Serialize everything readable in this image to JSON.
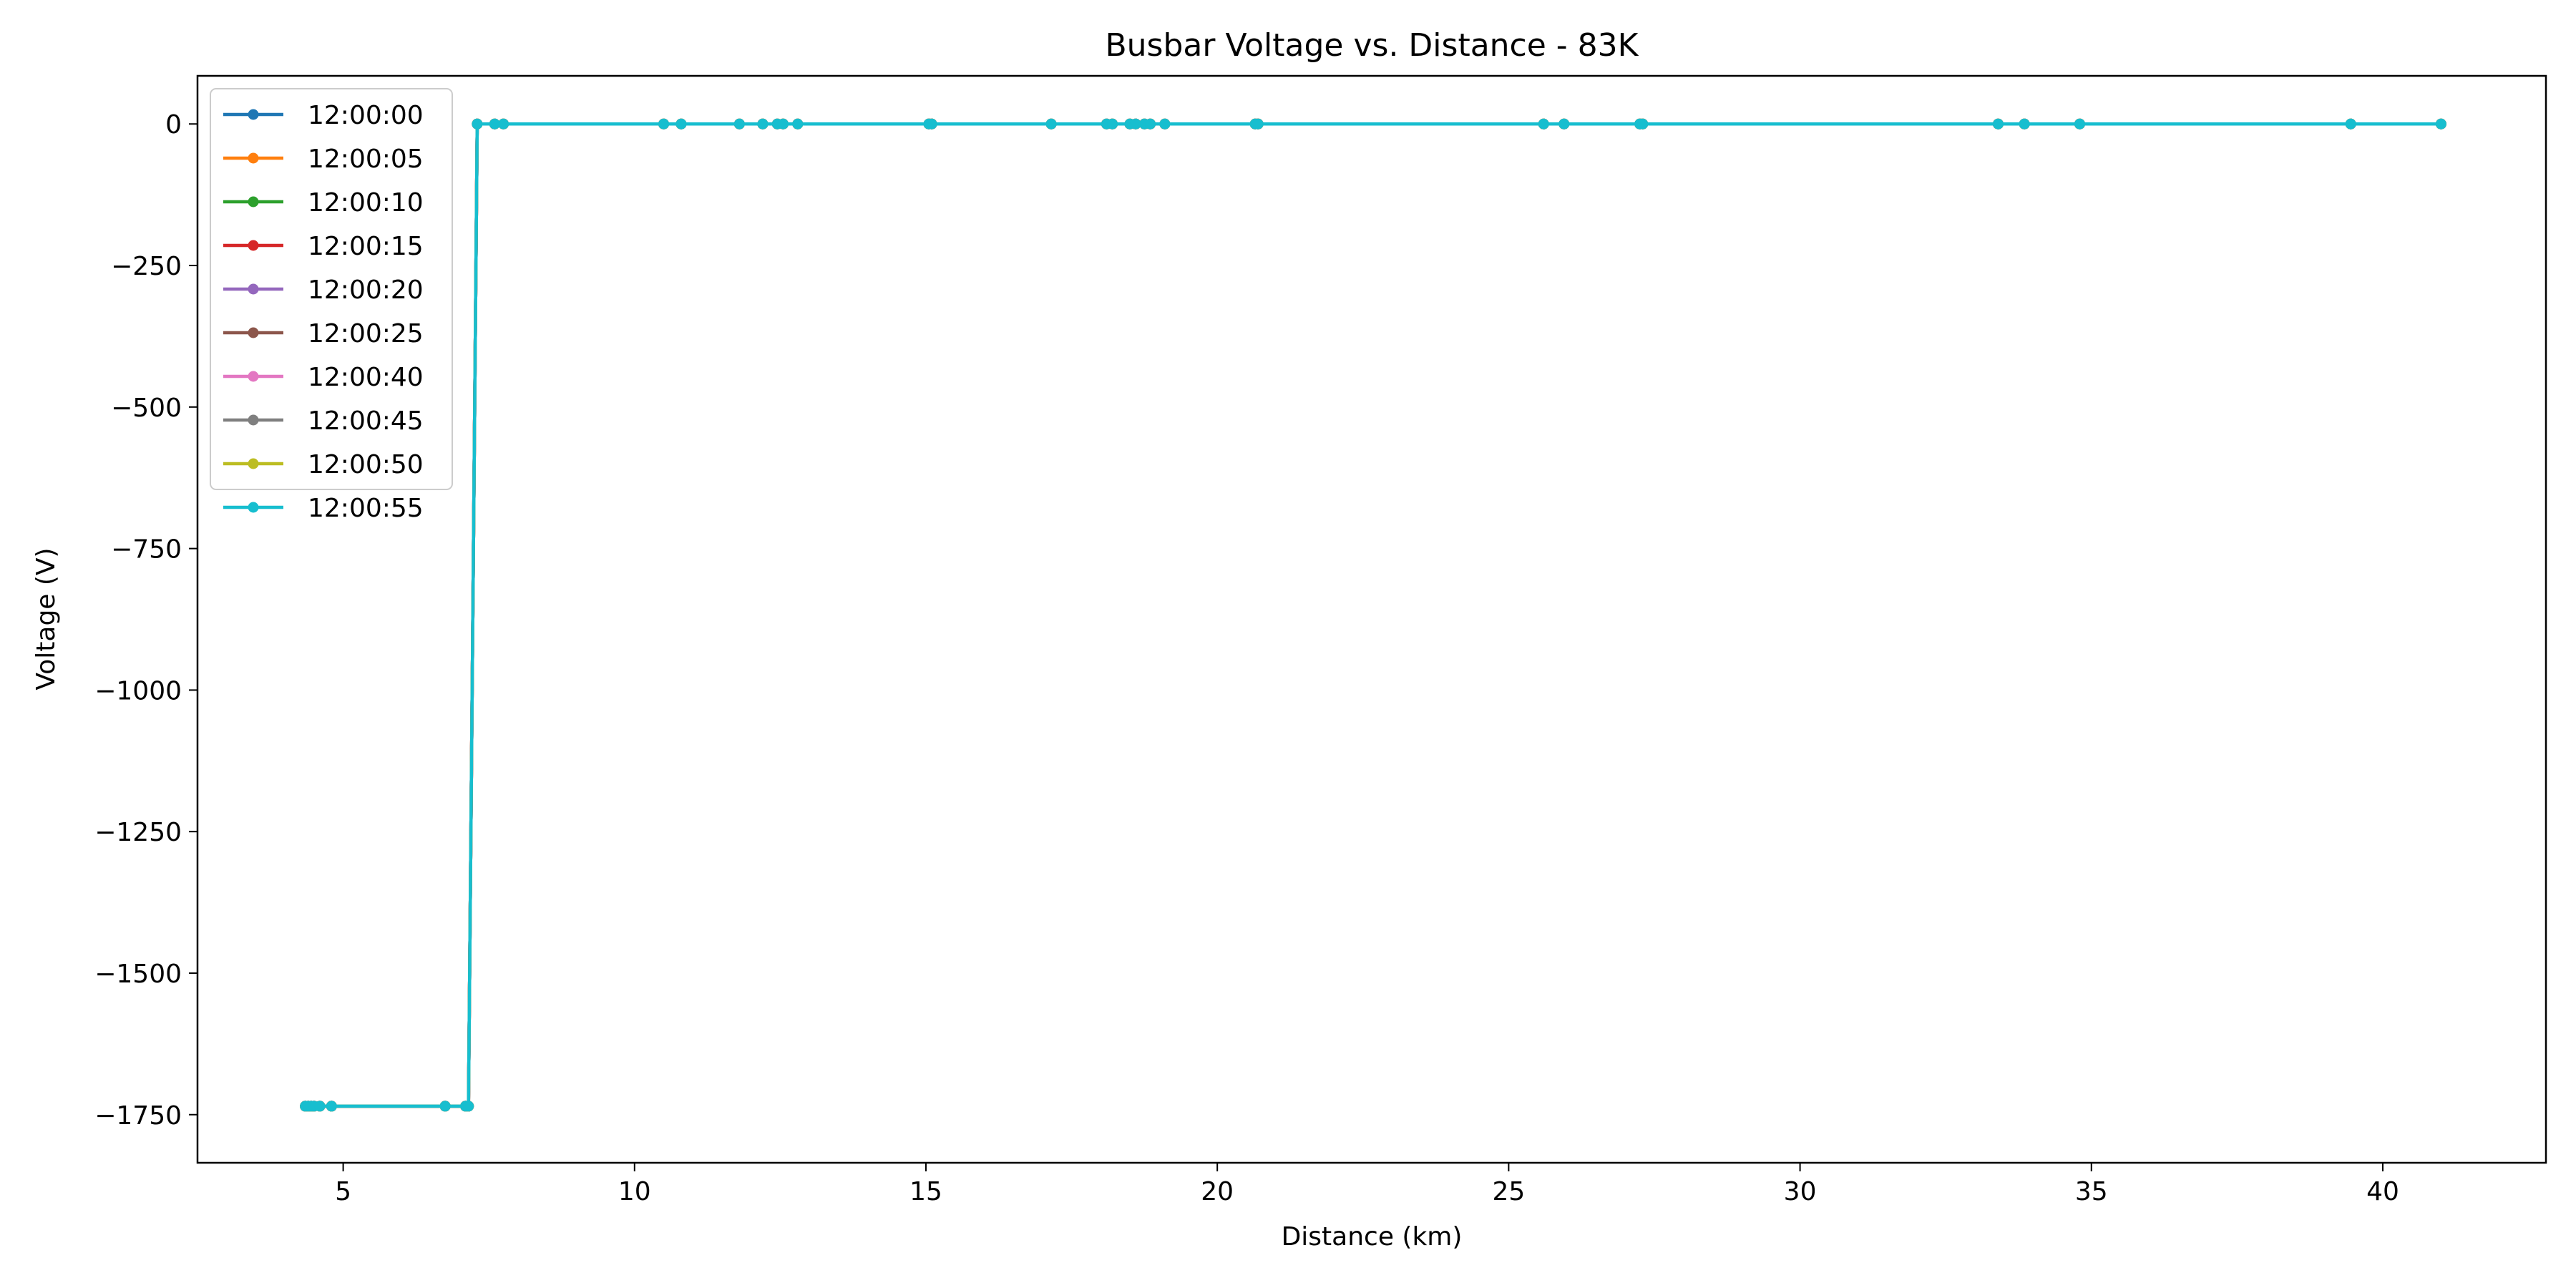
{
  "chart_data": {
    "type": "line",
    "title": "Busbar Voltage vs. Distance - 83K",
    "xlabel": "Distance (km)",
    "ylabel": "Voltage (V)",
    "xlim": [
      2.5,
      42.8
    ],
    "ylim": [
      -1835,
      85
    ],
    "xticks": [
      5,
      10,
      15,
      20,
      25,
      30,
      35,
      40
    ],
    "yticks": [
      0,
      -250,
      -500,
      -750,
      -1000,
      -1250,
      -1500,
      -1750
    ],
    "ytick_labels": [
      "0",
      "−250",
      "−500",
      "−750",
      "−1000",
      "−1250",
      "−1500",
      "−1750"
    ],
    "grid": false,
    "legend_position": "top-left",
    "x": [
      4.35,
      4.4,
      4.45,
      4.5,
      4.6,
      4.8,
      6.75,
      7.1,
      7.15,
      7.3,
      7.6,
      7.75,
      10.5,
      10.8,
      11.8,
      12.2,
      12.45,
      12.55,
      12.8,
      15.05,
      15.1,
      17.15,
      18.1,
      18.2,
      18.5,
      18.6,
      18.75,
      18.85,
      19.1,
      20.65,
      20.7,
      25.6,
      25.95,
      27.25,
      27.3,
      33.4,
      33.85,
      34.8,
      39.45,
      41.0
    ],
    "series": [
      {
        "name": "12:00:00",
        "color": "#1f77b4",
        "values": [
          -1735,
          -1735,
          -1735,
          -1735,
          -1735,
          -1735,
          -1735,
          -1735,
          -1735,
          0,
          0,
          0,
          0,
          0,
          0,
          0,
          0,
          0,
          0,
          0,
          0,
          0,
          0,
          0,
          0,
          0,
          0,
          0,
          0,
          0,
          0,
          0,
          0,
          0,
          0,
          0,
          0,
          0,
          0,
          0
        ]
      },
      {
        "name": "12:00:05",
        "color": "#ff7f0e",
        "values": [
          -1735,
          -1735,
          -1735,
          -1735,
          -1735,
          -1735,
          -1735,
          -1735,
          -1735,
          0,
          0,
          0,
          0,
          0,
          0,
          0,
          0,
          0,
          0,
          0,
          0,
          0,
          0,
          0,
          0,
          0,
          0,
          0,
          0,
          0,
          0,
          0,
          0,
          0,
          0,
          0,
          0,
          0,
          0,
          0
        ]
      },
      {
        "name": "12:00:10",
        "color": "#2ca02c",
        "values": [
          -1735,
          -1735,
          -1735,
          -1735,
          -1735,
          -1735,
          -1735,
          -1735,
          -1735,
          0,
          0,
          0,
          0,
          0,
          0,
          0,
          0,
          0,
          0,
          0,
          0,
          0,
          0,
          0,
          0,
          0,
          0,
          0,
          0,
          0,
          0,
          0,
          0,
          0,
          0,
          0,
          0,
          0,
          0,
          0
        ]
      },
      {
        "name": "12:00:15",
        "color": "#d62728",
        "values": [
          -1735,
          -1735,
          -1735,
          -1735,
          -1735,
          -1735,
          -1735,
          -1735,
          -1735,
          0,
          0,
          0,
          0,
          0,
          0,
          0,
          0,
          0,
          0,
          0,
          0,
          0,
          0,
          0,
          0,
          0,
          0,
          0,
          0,
          0,
          0,
          0,
          0,
          0,
          0,
          0,
          0,
          0,
          0,
          0
        ]
      },
      {
        "name": "12:00:20",
        "color": "#9467bd",
        "values": [
          -1735,
          -1735,
          -1735,
          -1735,
          -1735,
          -1735,
          -1735,
          -1735,
          -1735,
          0,
          0,
          0,
          0,
          0,
          0,
          0,
          0,
          0,
          0,
          0,
          0,
          0,
          0,
          0,
          0,
          0,
          0,
          0,
          0,
          0,
          0,
          0,
          0,
          0,
          0,
          0,
          0,
          0,
          0,
          0
        ]
      },
      {
        "name": "12:00:25",
        "color": "#8c564b",
        "values": [
          -1735,
          -1735,
          -1735,
          -1735,
          -1735,
          -1735,
          -1735,
          -1735,
          -1735,
          0,
          0,
          0,
          0,
          0,
          0,
          0,
          0,
          0,
          0,
          0,
          0,
          0,
          0,
          0,
          0,
          0,
          0,
          0,
          0,
          0,
          0,
          0,
          0,
          0,
          0,
          0,
          0,
          0,
          0,
          0
        ]
      },
      {
        "name": "12:00:40",
        "color": "#e377c2",
        "values": [
          -1735,
          -1735,
          -1735,
          -1735,
          -1735,
          -1735,
          -1735,
          -1735,
          -1735,
          0,
          0,
          0,
          0,
          0,
          0,
          0,
          0,
          0,
          0,
          0,
          0,
          0,
          0,
          0,
          0,
          0,
          0,
          0,
          0,
          0,
          0,
          0,
          0,
          0,
          0,
          0,
          0,
          0,
          0,
          0
        ]
      },
      {
        "name": "12:00:45",
        "color": "#7f7f7f",
        "values": [
          -1735,
          -1735,
          -1735,
          -1735,
          -1735,
          -1735,
          -1735,
          -1735,
          -1735,
          0,
          0,
          0,
          0,
          0,
          0,
          0,
          0,
          0,
          0,
          0,
          0,
          0,
          0,
          0,
          0,
          0,
          0,
          0,
          0,
          0,
          0,
          0,
          0,
          0,
          0,
          0,
          0,
          0,
          0,
          0
        ]
      },
      {
        "name": "12:00:50",
        "color": "#bcbd22",
        "values": [
          -1735,
          -1735,
          -1735,
          -1735,
          -1735,
          -1735,
          -1735,
          -1735,
          -1735,
          0,
          0,
          0,
          0,
          0,
          0,
          0,
          0,
          0,
          0,
          0,
          0,
          0,
          0,
          0,
          0,
          0,
          0,
          0,
          0,
          0,
          0,
          0,
          0,
          0,
          0,
          0,
          0,
          0,
          0,
          0
        ]
      },
      {
        "name": "12:00:55",
        "color": "#17becf",
        "values": [
          -1735,
          -1735,
          -1735,
          -1735,
          -1735,
          -1735,
          -1735,
          -1735,
          -1735,
          0,
          0,
          0,
          0,
          0,
          0,
          0,
          0,
          0,
          0,
          0,
          0,
          0,
          0,
          0,
          0,
          0,
          0,
          0,
          0,
          0,
          0,
          0,
          0,
          0,
          0,
          0,
          0,
          0,
          0,
          0
        ]
      }
    ]
  }
}
